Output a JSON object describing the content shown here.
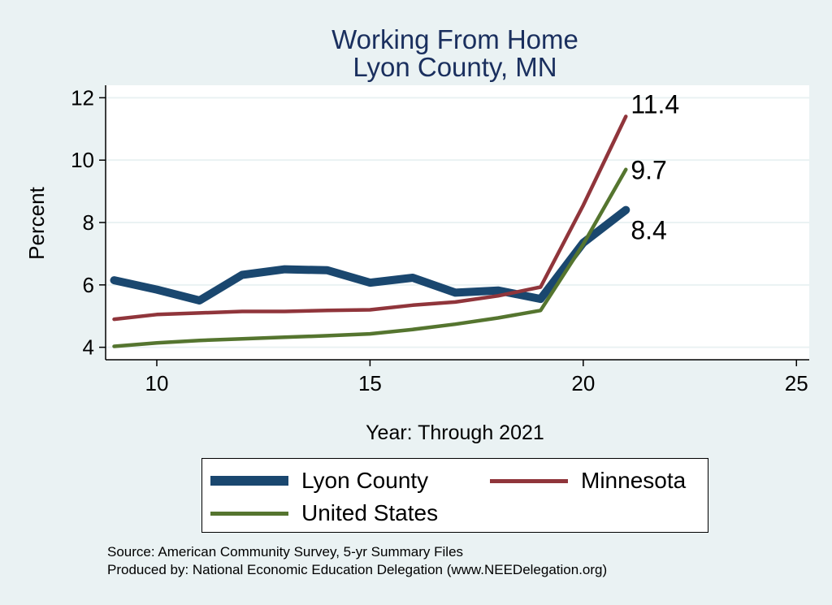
{
  "chart_data": {
    "type": "line",
    "title": "Working From Home",
    "subtitle": "Lyon County, MN",
    "xlabel": "Year: Through 2021",
    "ylabel": "Percent",
    "xlim": [
      8.8,
      25.3
    ],
    "ylim": [
      3.6,
      12.4
    ],
    "xticks": [
      10,
      15,
      20,
      25
    ],
    "yticks": [
      4,
      6,
      8,
      10,
      12
    ],
    "grid": true,
    "legend_position": "bottom",
    "series": [
      {
        "name": "Lyon County",
        "color": "#1a476f",
        "x": [
          9,
          10,
          11,
          12,
          13,
          14,
          15,
          16,
          17,
          18,
          19,
          20,
          21
        ],
        "y": [
          6.15,
          5.85,
          5.5,
          6.32,
          6.5,
          6.47,
          6.07,
          6.23,
          5.75,
          5.82,
          5.55,
          7.35,
          8.4
        ],
        "end_label": "8.4"
      },
      {
        "name": "Minnesota",
        "color": "#90353b",
        "x": [
          9,
          10,
          11,
          12,
          13,
          14,
          15,
          16,
          17,
          18,
          19,
          20,
          21
        ],
        "y": [
          4.9,
          5.05,
          5.1,
          5.15,
          5.15,
          5.18,
          5.2,
          5.35,
          5.45,
          5.65,
          5.93,
          8.55,
          11.4
        ],
        "end_label": "11.4"
      },
      {
        "name": "United States",
        "color": "#55752f",
        "x": [
          9,
          10,
          11,
          12,
          13,
          14,
          15,
          16,
          17,
          18,
          19,
          20,
          21
        ],
        "y": [
          4.03,
          4.14,
          4.22,
          4.27,
          4.32,
          4.37,
          4.43,
          4.57,
          4.74,
          4.94,
          5.18,
          7.3,
          9.7
        ],
        "end_label": "9.7"
      }
    ]
  },
  "source_lines": [
    "Source: American Community Survey, 5-yr Summary Files",
    "Produced by: National Economic Education Delegation (www.NEEDelegation.org)"
  ]
}
